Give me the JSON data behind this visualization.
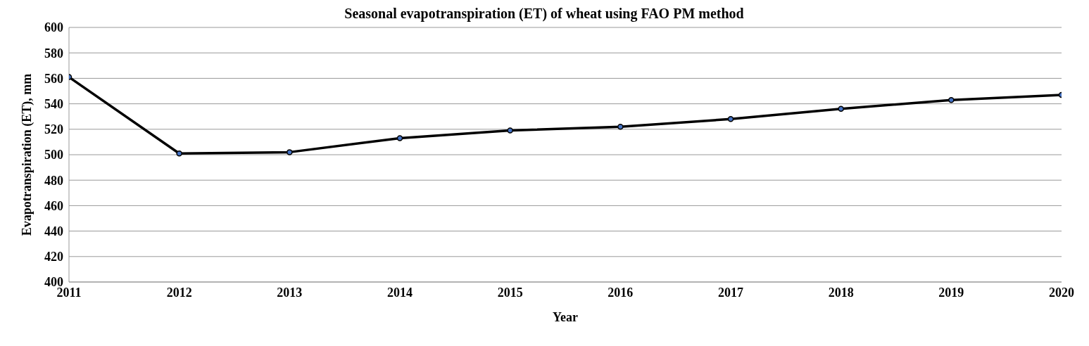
{
  "chart_data": {
    "type": "line",
    "title": "Seasonal evapotranspiration (ET) of wheat using FAO PM method",
    "xlabel": "Year",
    "ylabel": "Evapotranspiration (ET), mm",
    "x": [
      2011,
      2012,
      2013,
      2014,
      2015,
      2016,
      2017,
      2018,
      2019,
      2020
    ],
    "series": [
      {
        "color": "#000000",
        "values": [
          561,
          501,
          502,
          513,
          519,
          522,
          528,
          536,
          543,
          547
        ]
      }
    ],
    "xlim": [
      2011,
      2020
    ],
    "xticks": [
      2011,
      2012,
      2013,
      2014,
      2015,
      2016,
      2017,
      2018,
      2019,
      2020
    ],
    "ylim": [
      400,
      600
    ],
    "yticks": [
      400,
      420,
      440,
      460,
      480,
      500,
      520,
      540,
      560,
      580,
      600
    ],
    "grid": "y",
    "legend": false,
    "marker": "circle",
    "line_style": "solid"
  }
}
